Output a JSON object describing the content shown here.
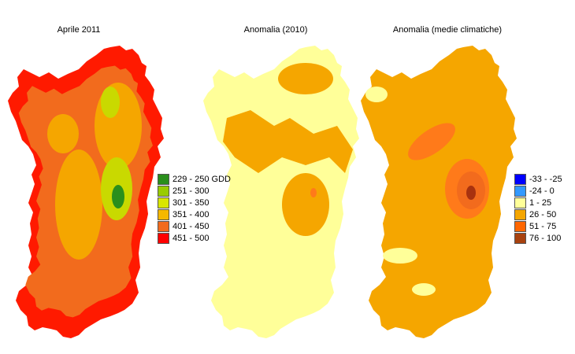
{
  "panels": [
    {
      "title": "Aprile 2011",
      "colors": {
        "base": "#f26b1d",
        "coast": "#ff1a00",
        "mid": "#f5a600",
        "high": "#c9d900",
        "peak": "#2a8f1c"
      }
    },
    {
      "title": "Anomalia (2010)",
      "colors": {
        "base": "#ffff99",
        "mid": "#f5a600",
        "high": "#f5a600",
        "peak": "#ff7a1a"
      }
    },
    {
      "title": "Anomalia (medie climatiche)",
      "colors": {
        "base": "#f5a600",
        "mid": "#ff7a1a",
        "high": "#f26b1d",
        "peak": "#a8320f",
        "pale": "#ffff99"
      }
    }
  ],
  "legends": [
    {
      "items": [
        {
          "label": "229 - 250 GDD",
          "color": "#2a8f1c"
        },
        {
          "label": "251 - 300",
          "color": "#99cc00"
        },
        {
          "label": "301 - 350",
          "color": "#d9e600"
        },
        {
          "label": "351 - 400",
          "color": "#f5b800"
        },
        {
          "label": "401 - 450",
          "color": "#f26b1d"
        },
        {
          "label": "451 - 500",
          "color": "#ff0000"
        }
      ]
    },
    {
      "items": [
        {
          "label": "-33 - -25",
          "color": "#0000ff"
        },
        {
          "label": "-24 - 0",
          "color": "#3399ff"
        },
        {
          "label": "1 - 25",
          "color": "#ffff99"
        },
        {
          "label": "26 - 50",
          "color": "#f5a600"
        },
        {
          "label": "51 - 75",
          "color": "#ff6600"
        },
        {
          "label": "76 - 100",
          "color": "#a8420f"
        }
      ]
    }
  ]
}
